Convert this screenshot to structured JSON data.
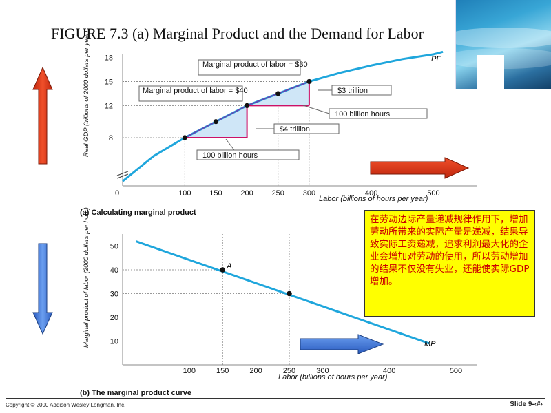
{
  "slide": {
    "title": "FIGURE 7.3 (a)  Marginal Product and the Demand for Labor",
    "copyright": "Copyright © 2000 Addison Wesley Longman, Inc.",
    "slide_number": "Slide 9-‹#›"
  },
  "note": {
    "text": "在劳动边际产量递减规律作用下，增加劳动所带来的实际产量是递减，结果导致实际工资递减，追求利润最大化的企业会增加对劳动的使用，所以劳动增加的结果不仅没有失业，还能使实际GDP增加。"
  },
  "colors": {
    "curve": "#1fa6dc",
    "highlight": "#cc1166",
    "fill": "#cfe6f7",
    "arrow_red": "#e8401c",
    "arrow_blue": "#4a7fd9",
    "note_bg": "#ffff00",
    "note_text": "#cc0000"
  },
  "chart_data": [
    {
      "type": "line",
      "caption": "(a) Calculating marginal product",
      "xlabel": "Labor (billions of hours per year)",
      "ylabel": "Real GDP (trillions of 2000 dollars per year)",
      "x_ticks": [
        0,
        100,
        150,
        200,
        250,
        300,
        400,
        500
      ],
      "y_ticks": [
        8,
        12,
        15,
        18
      ],
      "series": [
        {
          "name": "PF",
          "x": [
            0,
            50,
            100,
            150,
            200,
            250,
            300,
            350,
            400,
            450,
            500
          ],
          "y": [
            0.8,
            5.2,
            8,
            10,
            12,
            13.5,
            15,
            16.1,
            17,
            17.8,
            18.4
          ]
        }
      ],
      "points": [
        {
          "x": 100,
          "y": 8
        },
        {
          "x": 150,
          "y": 10
        },
        {
          "x": 200,
          "y": 12
        },
        {
          "x": 250,
          "y": 13.5
        },
        {
          "x": 300,
          "y": 15
        }
      ],
      "curve_label": "PF",
      "callouts": {
        "mp30": "Marginal product of labor = $30",
        "mp40": "Marginal product of labor = $40",
        "three_trillion": "$3 trillion",
        "four_trillion": "$4 trillion",
        "hours_upper": "100 billion hours",
        "hours_lower": "100 billion hours"
      }
    },
    {
      "type": "line",
      "caption": "(b) The marginal product curve",
      "xlabel": "Labor (billions of hours per year)",
      "ylabel": "Marginal product of labor (2000 dollars per hour)",
      "x_ticks": [
        100,
        150,
        200,
        250,
        300,
        400,
        500
      ],
      "y_ticks": [
        10,
        20,
        30,
        40,
        50
      ],
      "series": [
        {
          "name": "MP",
          "x": [
            20,
            460
          ],
          "y": [
            52,
            9
          ]
        }
      ],
      "points": [
        {
          "x": 150,
          "y": 40,
          "label": "A"
        },
        {
          "x": 250,
          "y": 30
        }
      ],
      "curve_label": "MP"
    }
  ]
}
